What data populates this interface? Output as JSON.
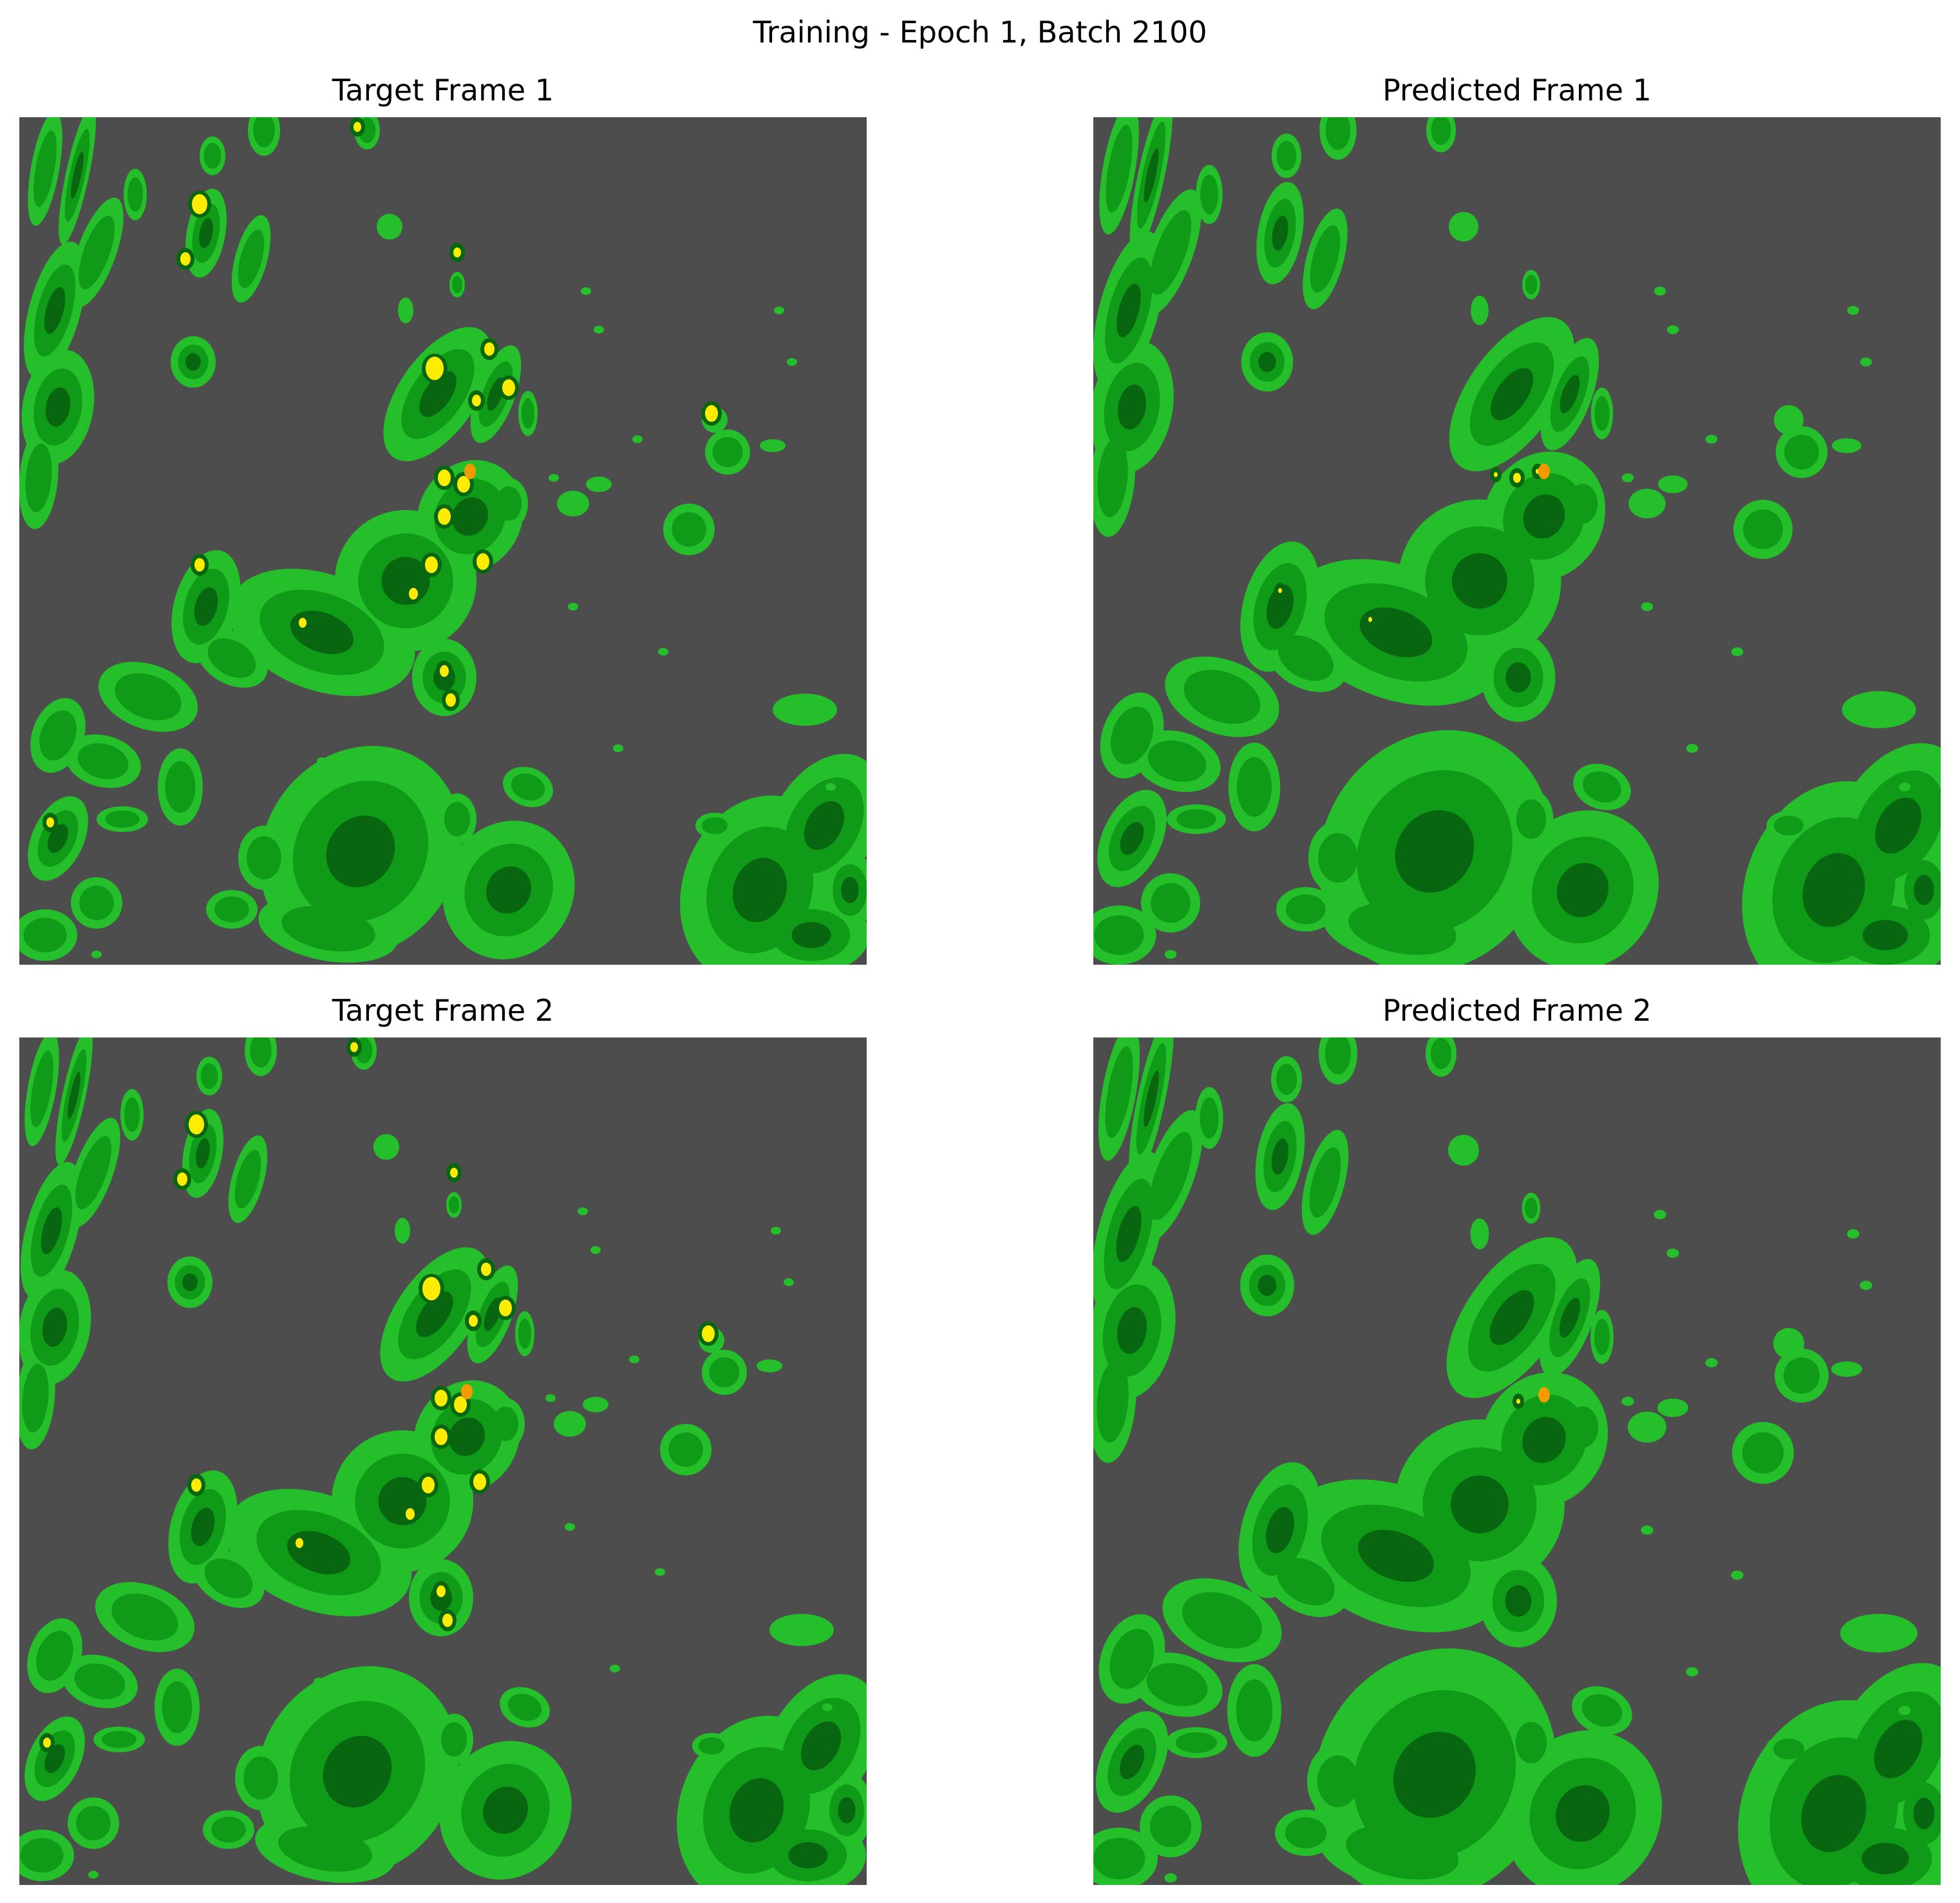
{
  "figure": {
    "title": "Training - Epoch 1, Batch 2100"
  },
  "panels": [
    {
      "title": "Target Frame 1"
    },
    {
      "title": "Predicted Frame 1"
    },
    {
      "title": "Target Frame 2"
    },
    {
      "title": "Predicted Frame 2"
    }
  ],
  "colors": {
    "background": "#4d4d4d",
    "light_green": "#24bf2a",
    "mid_green": "#0f9a18",
    "dark_green": "#086610",
    "yellow": "#ffec00",
    "orange": "#f29a00"
  }
}
